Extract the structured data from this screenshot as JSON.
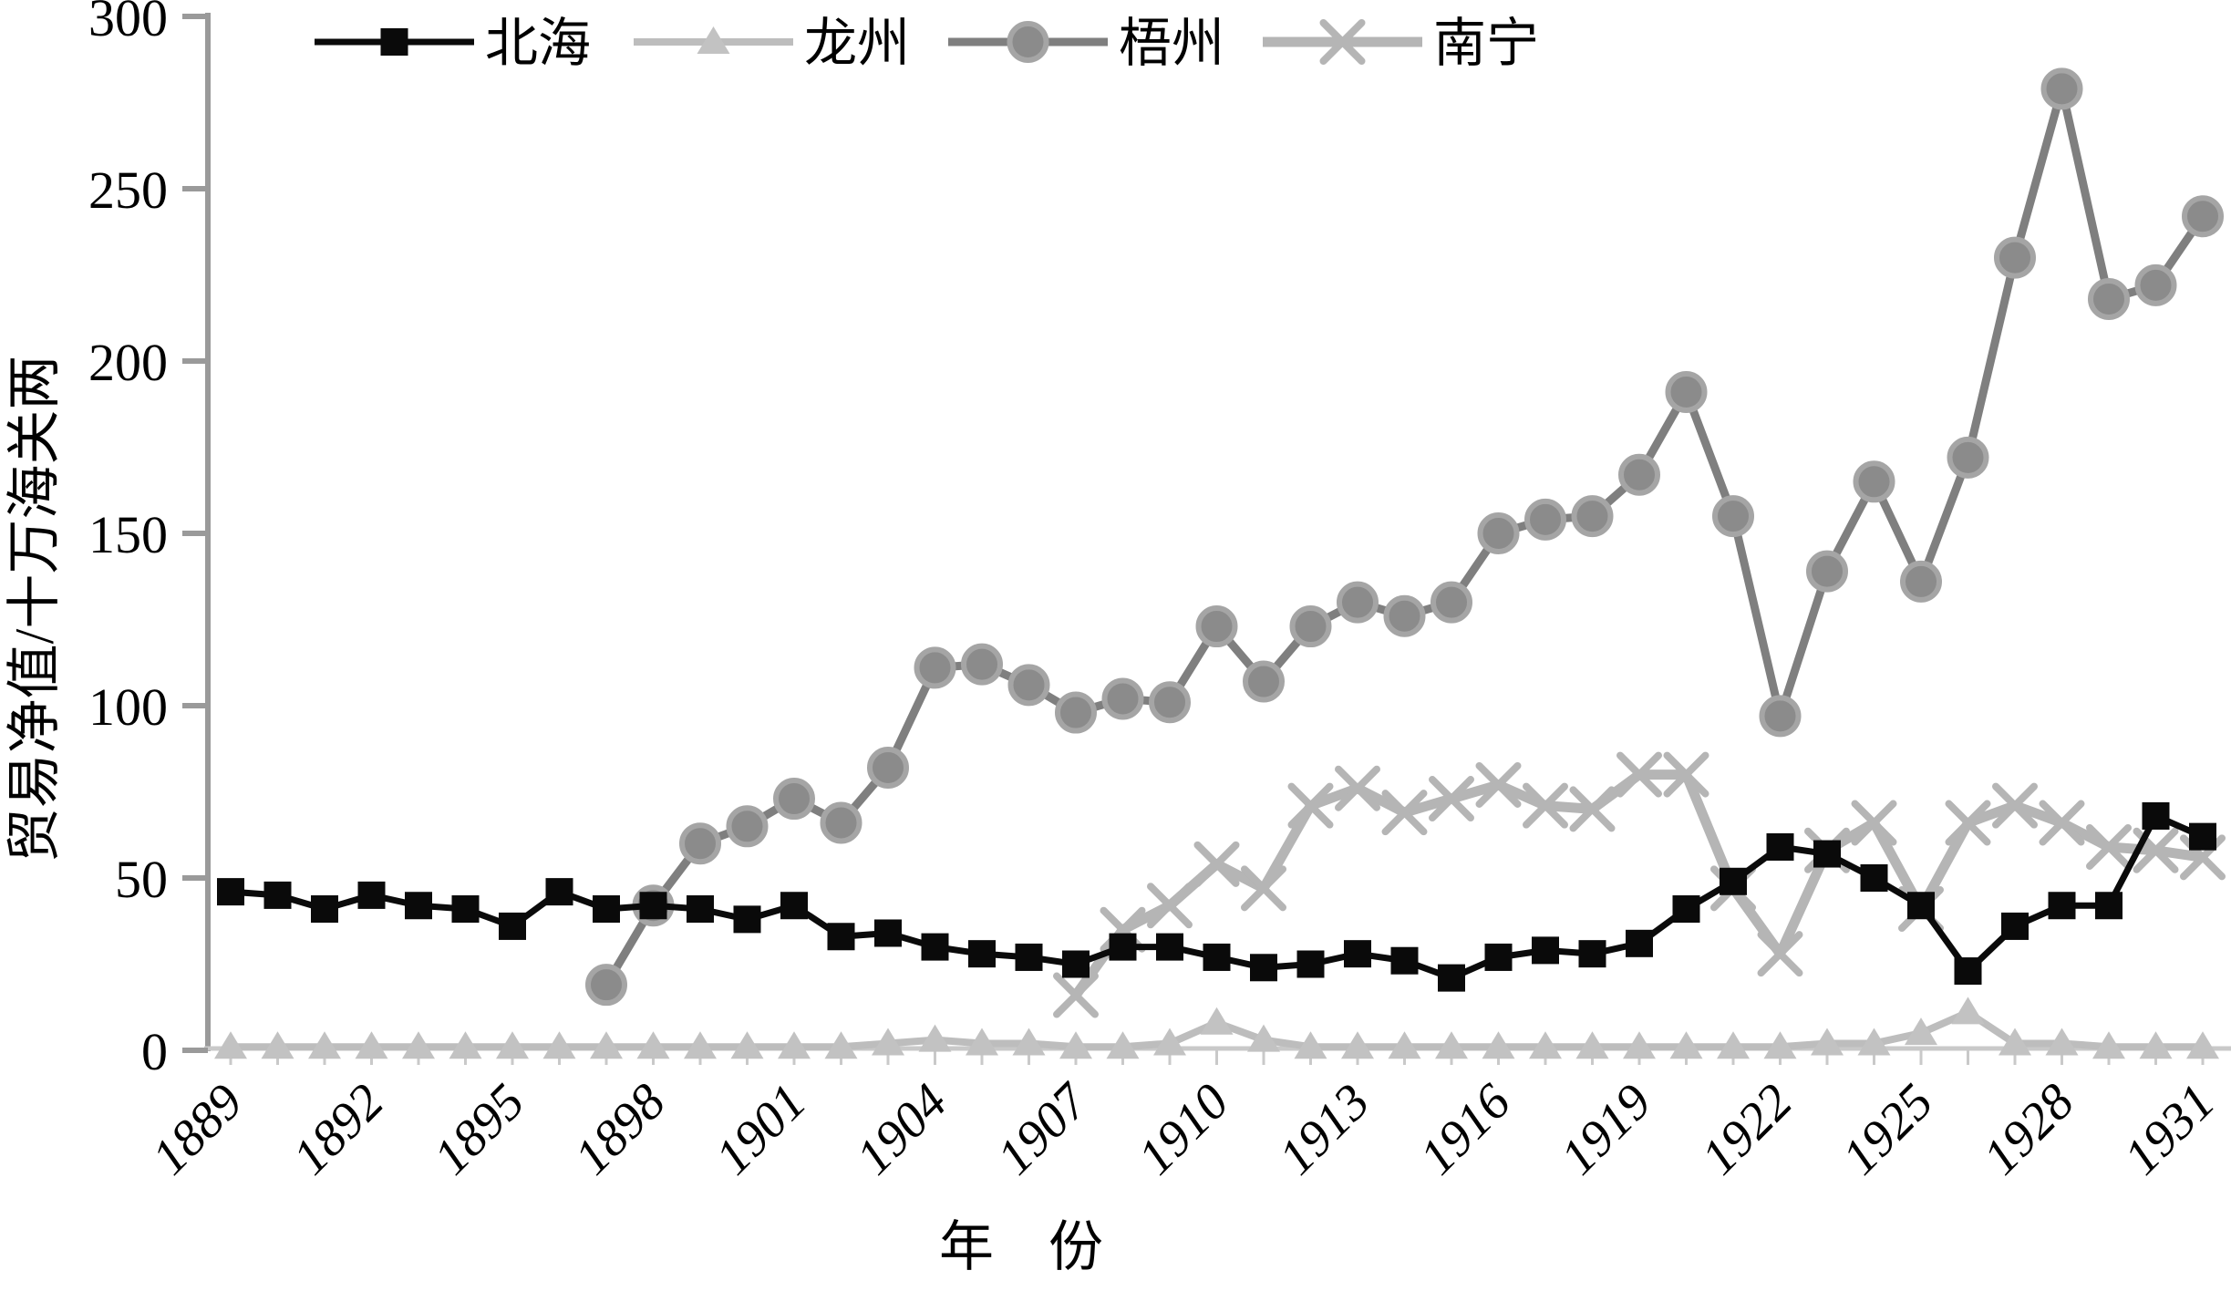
{
  "chart_data": {
    "type": "line",
    "title": "",
    "xlabel": "年　份",
    "ylabel": "贸易净值/十万海关两",
    "x": [
      1889,
      1890,
      1891,
      1892,
      1893,
      1894,
      1895,
      1896,
      1897,
      1898,
      1899,
      1900,
      1901,
      1902,
      1903,
      1904,
      1905,
      1906,
      1907,
      1908,
      1909,
      1910,
      1911,
      1912,
      1913,
      1914,
      1915,
      1916,
      1917,
      1918,
      1919,
      1920,
      1921,
      1922,
      1923,
      1924,
      1925,
      1926,
      1927,
      1928,
      1929,
      1930,
      1931
    ],
    "x_tick_labels": [
      "1889",
      "1892",
      "1895",
      "1898",
      "1901",
      "1904",
      "1907",
      "1910",
      "1913",
      "1916",
      "1919",
      "1922",
      "1925",
      "1928",
      "1931"
    ],
    "ylim": [
      0,
      300
    ],
    "y_ticks": [
      0,
      50,
      100,
      150,
      200,
      250,
      300
    ],
    "grid": false,
    "legend_position": "top",
    "series": [
      {
        "id": "beihai",
        "name": "北海",
        "marker": "square",
        "color": "#0a0a0a",
        "line_color": "#0a0a0a",
        "values": [
          46,
          45,
          41,
          45,
          42,
          41,
          36,
          46,
          41,
          42,
          41,
          38,
          42,
          33,
          34,
          30,
          28,
          27,
          25,
          30,
          30,
          27,
          24,
          25,
          28,
          26,
          21,
          27,
          29,
          28,
          31,
          41,
          49,
          59,
          57,
          50,
          42,
          23,
          36,
          42,
          42,
          68,
          62
        ]
      },
      {
        "id": "longzhou",
        "name": "龙州",
        "marker": "triangle",
        "color": "#c2c2c2",
        "line_color": "#bdbdbd",
        "values": [
          1,
          1,
          1,
          1,
          1,
          1,
          1,
          1,
          1,
          1,
          1,
          1,
          1,
          1,
          2,
          3,
          2,
          2,
          1,
          1,
          2,
          8,
          3,
          1,
          1,
          1,
          1,
          1,
          1,
          1,
          1,
          1,
          1,
          1,
          2,
          2,
          5,
          11,
          2,
          2,
          1,
          1,
          1
        ]
      },
      {
        "id": "wuzhou",
        "name": "梧州",
        "marker": "circle",
        "color": "#8b8b8b",
        "ring_color": "#a5a5a5",
        "line_color": "#7f7f7f",
        "values": [
          null,
          null,
          null,
          null,
          null,
          null,
          null,
          null,
          19,
          42,
          60,
          65,
          73,
          66,
          82,
          111,
          112,
          106,
          98,
          102,
          101,
          123,
          107,
          123,
          130,
          126,
          130,
          150,
          154,
          155,
          167,
          191,
          155,
          97,
          139,
          165,
          136,
          172,
          230,
          279,
          218,
          222,
          242
        ]
      },
      {
        "id": "nanning",
        "name": "南宁",
        "marker": "x",
        "color": "#b5b5b5",
        "line_color": "#b5b5b5",
        "values": [
          null,
          null,
          null,
          null,
          null,
          null,
          null,
          null,
          null,
          null,
          null,
          null,
          null,
          null,
          null,
          null,
          null,
          null,
          16,
          35,
          42,
          54,
          47,
          71,
          76,
          69,
          73,
          77,
          71,
          70,
          80,
          80,
          47,
          28,
          58,
          66,
          41,
          66,
          71,
          66,
          59,
          58,
          56
        ]
      }
    ],
    "axis_colors": {
      "y_axis": "#9a9a9a",
      "x_axis": "#c9c9c9"
    }
  }
}
